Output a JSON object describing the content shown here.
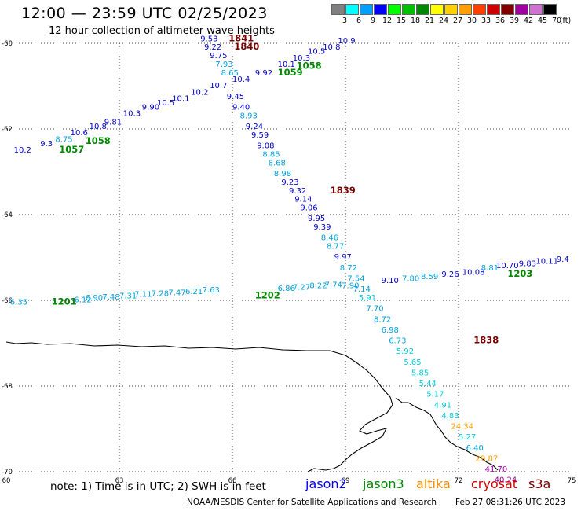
{
  "header": {
    "title": "12:00 — 23:59 UTC 02/25/2023",
    "subtitle": "12 hour collection of altimeter wave heights"
  },
  "legend": {
    "unit": "(ft)",
    "items": [
      {
        "label": "3",
        "color": "#808080"
      },
      {
        "label": "6",
        "color": "#00ffff"
      },
      {
        "label": "9",
        "color": "#00a0ff"
      },
      {
        "label": "12",
        "color": "#0000ff"
      },
      {
        "label": "15",
        "color": "#00ff00"
      },
      {
        "label": "18",
        "color": "#00c000"
      },
      {
        "label": "21",
        "color": "#008800"
      },
      {
        "label": "24",
        "color": "#ffff00"
      },
      {
        "label": "27",
        "color": "#ffd000"
      },
      {
        "label": "30",
        "color": "#ffa000"
      },
      {
        "label": "33",
        "color": "#ff4000"
      },
      {
        "label": "36",
        "color": "#d00000"
      },
      {
        "label": "39",
        "color": "#800000"
      },
      {
        "label": "42",
        "color": "#a000a0"
      },
      {
        "label": "45",
        "color": "#d070d0"
      },
      {
        "label": "70",
        "color": "#000000"
      }
    ]
  },
  "axes": {
    "x_ticks": [
      "60",
      "63",
      "66",
      "69",
      "72",
      "75"
    ],
    "y_ticks": [
      "-60",
      "-62",
      "-64",
      "-66",
      "-68",
      "-70"
    ]
  },
  "footer": {
    "note": "note:  1) Time is in UTC;  2) SWH is in feet",
    "satellites": [
      {
        "name": "jason2",
        "color": "#0000ee"
      },
      {
        "name": "jason3",
        "color": "#008800"
      },
      {
        "name": "altika",
        "color": "#ff8c00"
      },
      {
        "name": "cryosat",
        "color": "#cc0000"
      },
      {
        "name": "s3a",
        "color": "#7a0000"
      }
    ],
    "credit": "NOAA/NESDIS Center for Satellite Applications and Research",
    "timestamp": "Feb 27 08:31:26 UTC 2023"
  },
  "map": {
    "lon_range": [
      60,
      75
    ],
    "lat_range": [
      -70,
      -60
    ],
    "track_labels": [
      {
        "text": "1841",
        "lon": 65.9,
        "lat": -59.95,
        "color": "#7a0000"
      },
      {
        "text": "1840",
        "lon": 66.05,
        "lat": -60.15,
        "color": "#7a0000"
      },
      {
        "text": "1839",
        "lon": 68.6,
        "lat": -63.5,
        "color": "#7a0000"
      },
      {
        "text": "1838",
        "lon": 72.4,
        "lat": -67.0,
        "color": "#7a0000"
      },
      {
        "text": "1203",
        "lon": 73.3,
        "lat": -65.45,
        "color": "#008800"
      },
      {
        "text": "1202",
        "lon": 66.6,
        "lat": -65.95,
        "color": "#008800"
      },
      {
        "text": "1201",
        "lon": 61.2,
        "lat": -66.1,
        "color": "#008800"
      },
      {
        "text": "1057",
        "lon": 61.4,
        "lat": -62.55,
        "color": "#008800"
      },
      {
        "text": "1058",
        "lon": 62.1,
        "lat": -62.35,
        "color": "#008800"
      },
      {
        "text": "1059",
        "lon": 67.2,
        "lat": -60.75,
        "color": "#008800"
      },
      {
        "text": "1058",
        "lon": 67.7,
        "lat": -60.6,
        "color": "#008800"
      }
    ],
    "swh_values": [
      {
        "text": "9.53",
        "lon": 65.15,
        "lat": -59.95,
        "color": "#0000cc"
      },
      {
        "text": "9.22",
        "lon": 65.25,
        "lat": -60.15,
        "color": "#0000cc"
      },
      {
        "text": "9.75",
        "lon": 65.4,
        "lat": -60.35,
        "color": "#0000cc"
      },
      {
        "text": "7.93",
        "lon": 65.55,
        "lat": -60.55,
        "color": "#00a0dd"
      },
      {
        "text": "8.65",
        "lon": 65.7,
        "lat": -60.75,
        "color": "#00a0dd"
      },
      {
        "text": "9.45",
        "lon": 65.85,
        "lat": -61.3,
        "color": "#0000cc"
      },
      {
        "text": "9.40",
        "lon": 66.0,
        "lat": -61.55,
        "color": "#0000cc"
      },
      {
        "text": "8.93",
        "lon": 66.2,
        "lat": -61.75,
        "color": "#00a0dd"
      },
      {
        "text": "9.24",
        "lon": 66.35,
        "lat": -62.0,
        "color": "#0000cc"
      },
      {
        "text": "9.59",
        "lon": 66.5,
        "lat": -62.2,
        "color": "#0000cc"
      },
      {
        "text": "9.08",
        "lon": 66.65,
        "lat": -62.45,
        "color": "#0000cc"
      },
      {
        "text": "8.85",
        "lon": 66.8,
        "lat": -62.65,
        "color": "#00a0dd"
      },
      {
        "text": "8.68",
        "lon": 66.95,
        "lat": -62.85,
        "color": "#00a0dd"
      },
      {
        "text": "8.98",
        "lon": 67.1,
        "lat": -63.1,
        "color": "#00a0dd"
      },
      {
        "text": "9.23",
        "lon": 67.3,
        "lat": -63.3,
        "color": "#0000cc"
      },
      {
        "text": "9.32",
        "lon": 67.5,
        "lat": -63.5,
        "color": "#0000cc"
      },
      {
        "text": "9.14",
        "lon": 67.65,
        "lat": -63.7,
        "color": "#0000cc"
      },
      {
        "text": "9.06",
        "lon": 67.8,
        "lat": -63.9,
        "color": "#0000cc"
      },
      {
        "text": "9.95",
        "lon": 68.0,
        "lat": -64.15,
        "color": "#0000cc"
      },
      {
        "text": "9.39",
        "lon": 68.15,
        "lat": -64.35,
        "color": "#0000cc"
      },
      {
        "text": "8.46",
        "lon": 68.35,
        "lat": -64.6,
        "color": "#00a0dd"
      },
      {
        "text": "8.77",
        "lon": 68.5,
        "lat": -64.8,
        "color": "#00a0dd"
      },
      {
        "text": "9.97",
        "lon": 68.7,
        "lat": -65.05,
        "color": "#0000cc"
      },
      {
        "text": "8.72",
        "lon": 68.85,
        "lat": -65.3,
        "color": "#00a0dd"
      },
      {
        "text": "7.54",
        "lon": 69.05,
        "lat": -65.55,
        "color": "#00a0dd"
      },
      {
        "text": "9.10",
        "lon": 69.95,
        "lat": -65.6,
        "color": "#0000cc"
      },
      {
        "text": "7.80",
        "lon": 70.5,
        "lat": -65.55,
        "color": "#00a0dd"
      },
      {
        "text": "8.59",
        "lon": 71.0,
        "lat": -65.5,
        "color": "#00a0dd"
      },
      {
        "text": "9.26",
        "lon": 71.55,
        "lat": -65.45,
        "color": "#0000cc"
      },
      {
        "text": "10.08",
        "lon": 72.1,
        "lat": -65.4,
        "color": "#0000cc"
      },
      {
        "text": "8.81",
        "lon": 72.6,
        "lat": -65.3,
        "color": "#00a0dd"
      },
      {
        "text": "10.70",
        "lon": 73.0,
        "lat": -65.25,
        "color": "#0000cc"
      },
      {
        "text": "9.83",
        "lon": 73.6,
        "lat": -65.2,
        "color": "#0000cc"
      },
      {
        "text": "10.11",
        "lon": 74.05,
        "lat": -65.15,
        "color": "#0000cc"
      },
      {
        "text": "9.4",
        "lon": 74.6,
        "lat": -65.1,
        "color": "#0000cc"
      },
      {
        "text": "7.90",
        "lon": 68.9,
        "lat": -65.72,
        "color": "#00a0dd"
      },
      {
        "text": "7.14",
        "lon": 69.2,
        "lat": -65.8,
        "color": "#00a0dd"
      },
      {
        "text": "5.91",
        "lon": 69.35,
        "lat": -66.0,
        "color": "#00ccdd"
      },
      {
        "text": "7.70",
        "lon": 69.55,
        "lat": -66.25,
        "color": "#00a0dd"
      },
      {
        "text": "8.72",
        "lon": 69.75,
        "lat": -66.5,
        "color": "#00a0dd"
      },
      {
        "text": "6.98",
        "lon": 69.95,
        "lat": -66.75,
        "color": "#00a0dd"
      },
      {
        "text": "6.73",
        "lon": 70.15,
        "lat": -67.0,
        "color": "#00a0dd"
      },
      {
        "text": "5.92",
        "lon": 70.35,
        "lat": -67.25,
        "color": "#00ccdd"
      },
      {
        "text": "5.65",
        "lon": 70.55,
        "lat": -67.5,
        "color": "#00ccdd"
      },
      {
        "text": "5.85",
        "lon": 70.75,
        "lat": -67.75,
        "color": "#00ccdd"
      },
      {
        "text": "5.44",
        "lon": 70.95,
        "lat": -68.0,
        "color": "#00ccdd"
      },
      {
        "text": "5.17",
        "lon": 71.15,
        "lat": -68.25,
        "color": "#00ccdd"
      },
      {
        "text": "4.91",
        "lon": 71.35,
        "lat": -68.5,
        "color": "#00ccdd"
      },
      {
        "text": "4.83",
        "lon": 71.55,
        "lat": -68.75,
        "color": "#00ccdd"
      },
      {
        "text": "24.34",
        "lon": 71.8,
        "lat": -69.0,
        "color": "#ffa000"
      },
      {
        "text": "5.27",
        "lon": 72.0,
        "lat": -69.25,
        "color": "#00ccdd"
      },
      {
        "text": "6.40",
        "lon": 72.2,
        "lat": -69.5,
        "color": "#00a0dd"
      },
      {
        "text": "29.87",
        "lon": 72.45,
        "lat": -69.75,
        "color": "#ffa000"
      },
      {
        "text": "41.70",
        "lon": 72.7,
        "lat": -70.0,
        "color": "#a000a0"
      },
      {
        "text": "40.24",
        "lon": 72.95,
        "lat": -70.25,
        "color": "#a000a0"
      },
      {
        "text": "6.35",
        "lon": 60.1,
        "lat": -66.1,
        "color": "#00a0dd"
      },
      {
        "text": "6.12",
        "lon": 61.8,
        "lat": -66.05,
        "color": "#00a0dd"
      },
      {
        "text": "6.90",
        "lon": 62.1,
        "lat": -66.0,
        "color": "#00a0dd"
      },
      {
        "text": "7.48",
        "lon": 62.55,
        "lat": -65.98,
        "color": "#00a0dd"
      },
      {
        "text": "7.31",
        "lon": 63.0,
        "lat": -65.95,
        "color": "#00a0dd"
      },
      {
        "text": "7.11",
        "lon": 63.4,
        "lat": -65.92,
        "color": "#00a0dd"
      },
      {
        "text": "7.28",
        "lon": 63.85,
        "lat": -65.9,
        "color": "#00a0dd"
      },
      {
        "text": "7.47",
        "lon": 64.3,
        "lat": -65.88,
        "color": "#00a0dd"
      },
      {
        "text": "6.21",
        "lon": 64.75,
        "lat": -65.85,
        "color": "#00a0dd"
      },
      {
        "text": "7.63",
        "lon": 65.2,
        "lat": -65.82,
        "color": "#00a0dd"
      },
      {
        "text": "6.86",
        "lon": 67.2,
        "lat": -65.78,
        "color": "#00a0dd"
      },
      {
        "text": "7.27",
        "lon": 67.6,
        "lat": -65.75,
        "color": "#00a0dd"
      },
      {
        "text": "8.22",
        "lon": 68.05,
        "lat": -65.72,
        "color": "#00a0dd"
      },
      {
        "text": "7.74",
        "lon": 68.45,
        "lat": -65.7,
        "color": "#00a0dd"
      }
    ],
    "dense_ascending_labels": [
      {
        "text": "10.2",
        "lon": 60.2,
        "lat": -62.55,
        "color": "#0000cc"
      },
      {
        "text": "9.3",
        "lon": 60.9,
        "lat": -62.4,
        "color": "#0000cc"
      },
      {
        "text": "8.75",
        "lon": 61.3,
        "lat": -62.3,
        "color": "#00a0dd"
      },
      {
        "text": "10.6",
        "lon": 61.7,
        "lat": -62.15,
        "color": "#0000cc"
      },
      {
        "text": "10.8",
        "lon": 62.2,
        "lat": -62.0,
        "color": "#0000cc"
      },
      {
        "text": "9.81",
        "lon": 62.6,
        "lat": -61.9,
        "color": "#0000cc"
      },
      {
        "text": "10.3",
        "lon": 63.1,
        "lat": -61.7,
        "color": "#0000cc"
      },
      {
        "text": "9.90",
        "lon": 63.6,
        "lat": -61.55,
        "color": "#0000cc"
      },
      {
        "text": "10.5",
        "lon": 64.0,
        "lat": -61.45,
        "color": "#0000cc"
      },
      {
        "text": "10.1",
        "lon": 64.4,
        "lat": -61.35,
        "color": "#0000cc"
      },
      {
        "text": "10.2",
        "lon": 64.9,
        "lat": -61.2,
        "color": "#0000cc"
      },
      {
        "text": "10.7",
        "lon": 65.4,
        "lat": -61.05,
        "color": "#0000cc"
      },
      {
        "text": "10.4",
        "lon": 66.0,
        "lat": -60.9,
        "color": "#0000cc"
      },
      {
        "text": "9.92",
        "lon": 66.6,
        "lat": -60.75,
        "color": "#0000cc"
      },
      {
        "text": "10.1",
        "lon": 67.2,
        "lat": -60.55,
        "color": "#0000cc"
      },
      {
        "text": "10.3",
        "lon": 67.6,
        "lat": -60.4,
        "color": "#0000cc"
      },
      {
        "text": "10.5",
        "lon": 68.0,
        "lat": -60.25,
        "color": "#0000cc"
      },
      {
        "text": "10.8",
        "lon": 68.4,
        "lat": -60.15,
        "color": "#0000cc"
      },
      {
        "text": "10.9",
        "lon": 68.8,
        "lat": -60.0,
        "color": "#0000cc"
      }
    ]
  }
}
